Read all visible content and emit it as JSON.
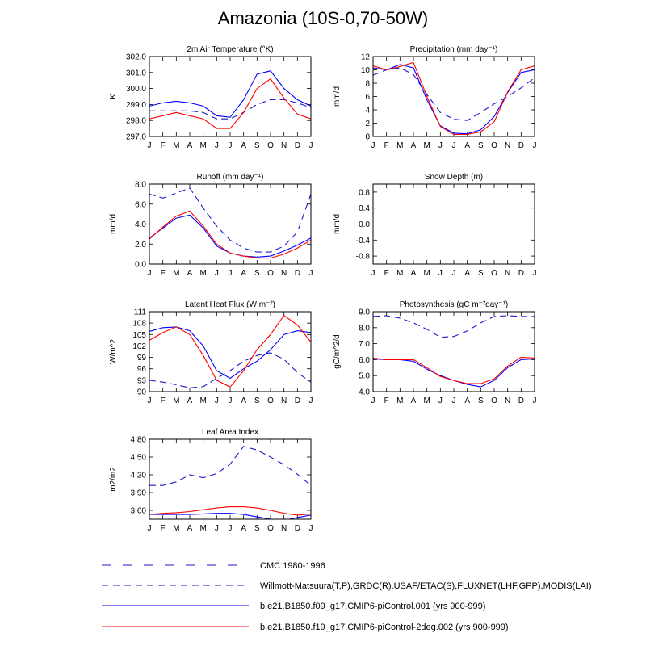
{
  "page": {
    "title": "Amazonia (10S-0,70-50W)"
  },
  "months": [
    "J",
    "F",
    "M",
    "A",
    "M",
    "J",
    "J",
    "A",
    "S",
    "O",
    "N",
    "D",
    "J"
  ],
  "colors": {
    "obs": "#1a1ac8",
    "blue": "#0000ff",
    "red": "#ff0000",
    "axis": "#000000"
  },
  "legend": [
    {
      "label": "CMC 1980-1996",
      "color": "#1a1ac8",
      "dash": "long"
    },
    {
      "label": "Willmott-Matsuura(T,P),GRDC(R),USAF/ETAC(S),FLUXNET(LHF,GPP),MODIS(LAI)",
      "color": "#1a1ac8",
      "dash": "medium"
    },
    {
      "label": "b.e21.B1850.f09_g17.CMIP6-piControl.001 (yrs 900-999)",
      "color": "#0000ff",
      "dash": "solid"
    },
    {
      "label": "b.e21.B1850.f19_g17.CMIP6-piControl-2deg.002 (yrs 900-999)",
      "color": "#ff0000",
      "dash": "solid"
    }
  ],
  "chart_data": [
    {
      "type": "line",
      "id": "temp",
      "title": "2m Air Temperature (°K)",
      "ylabel": "K",
      "ylim": [
        297.0,
        302.0
      ],
      "yticks": [
        "297.0",
        "298.0",
        "299.0",
        "300.0",
        "301.0",
        "302.0"
      ],
      "yticks_values": [
        297.0,
        298.0,
        299.0,
        300.0,
        301.0,
        302.0
      ],
      "series": [
        {
          "name": "Willmott-Matsuura",
          "style": "dashed",
          "values": [
            298.6,
            298.6,
            298.6,
            298.6,
            298.5,
            298.1,
            298.1,
            298.5,
            299.0,
            299.3,
            299.3,
            299.1,
            298.8
          ]
        },
        {
          "name": "piControl.001",
          "style": "blue",
          "values": [
            298.9,
            299.1,
            299.2,
            299.1,
            298.9,
            298.3,
            298.2,
            299.3,
            300.9,
            301.1,
            300.0,
            299.3,
            298.9
          ]
        },
        {
          "name": "piControl-2deg.002",
          "style": "red",
          "values": [
            298.1,
            298.3,
            298.5,
            298.3,
            298.1,
            297.5,
            297.5,
            298.5,
            300.0,
            300.6,
            299.4,
            298.4,
            298.1
          ]
        }
      ]
    },
    {
      "type": "line",
      "id": "precip",
      "title": "Precipitation (mm day⁻¹)",
      "ylabel": "mm/d",
      "ylim": [
        0,
        12
      ],
      "yticks": [
        "0",
        "2",
        "4",
        "6",
        "8",
        "10",
        "12"
      ],
      "yticks_values": [
        0,
        2,
        4,
        6,
        8,
        10,
        12
      ],
      "series": [
        {
          "name": "Willmott-Matsuura",
          "style": "dashed",
          "values": [
            9.2,
            10.0,
            10.3,
            9.3,
            6.3,
            3.6,
            2.6,
            2.4,
            3.6,
            4.9,
            6.0,
            7.3,
            8.8
          ]
        },
        {
          "name": "piControl.001",
          "style": "blue",
          "values": [
            10.3,
            10.0,
            10.8,
            10.3,
            5.5,
            1.6,
            0.5,
            0.4,
            1.0,
            3.0,
            6.6,
            9.6,
            10.0
          ]
        },
        {
          "name": "piControl-2deg.002",
          "style": "red",
          "values": [
            10.6,
            10.0,
            10.5,
            11.1,
            6.0,
            1.5,
            0.3,
            0.3,
            0.7,
            2.2,
            6.7,
            10.0,
            10.6
          ]
        }
      ]
    },
    {
      "type": "line",
      "id": "runoff",
      "title": "Runoff (mm day⁻¹)",
      "ylabel": "mm/d",
      "ylim": [
        0.0,
        8.0
      ],
      "yticks": [
        "0.0",
        "2.0",
        "4.0",
        "6.0",
        "8.0"
      ],
      "yticks_values": [
        0.0,
        2.0,
        4.0,
        6.0,
        8.0
      ],
      "series": [
        {
          "name": "GRDC",
          "style": "dashed",
          "values": [
            7.0,
            6.6,
            7.1,
            7.6,
            5.6,
            3.8,
            2.4,
            1.6,
            1.2,
            1.2,
            1.8,
            3.2,
            7.0
          ]
        },
        {
          "name": "piControl.001",
          "style": "blue",
          "values": [
            2.6,
            3.6,
            4.6,
            4.9,
            3.6,
            1.8,
            1.1,
            0.8,
            0.7,
            0.8,
            1.3,
            1.9,
            2.6
          ]
        },
        {
          "name": "piControl-2deg.002",
          "style": "red",
          "values": [
            2.5,
            3.7,
            4.8,
            5.3,
            3.8,
            2.0,
            1.1,
            0.8,
            0.6,
            0.6,
            1.0,
            1.6,
            2.4
          ]
        }
      ]
    },
    {
      "type": "line",
      "id": "snow",
      "title": "Snow Depth (m)",
      "ylabel": "mm/d",
      "ylim": [
        -1.0,
        1.0
      ],
      "yticks": [
        "-0.8",
        "-0.4",
        "0.0",
        "0.4",
        "0.8"
      ],
      "yticks_values": [
        -0.8,
        -0.4,
        0.0,
        0.4,
        0.8
      ],
      "series": [
        {
          "name": "USAF/ETAC",
          "style": "dashed",
          "values": [
            0,
            0,
            0,
            0,
            0,
            0,
            0,
            0,
            0,
            0,
            0,
            0,
            0
          ]
        },
        {
          "name": "piControl-2deg.002",
          "style": "red",
          "values": [
            0,
            0,
            0,
            0,
            0,
            0,
            0,
            0,
            0,
            0,
            0,
            0,
            0
          ]
        },
        {
          "name": "piControl.001",
          "style": "blue",
          "values": [
            0,
            0,
            0,
            0,
            0,
            0,
            0,
            0,
            0,
            0,
            0,
            0,
            0
          ]
        }
      ]
    },
    {
      "type": "line",
      "id": "lhf",
      "title": "Latent Heat Flux (W m⁻²)",
      "ylabel": "W/m^2",
      "ylim": [
        90,
        111
      ],
      "yticks": [
        "90",
        "93",
        "96",
        "99",
        "102",
        "105",
        "108",
        "111"
      ],
      "yticks_values": [
        90,
        93,
        96,
        99,
        102,
        105,
        108,
        111
      ],
      "series": [
        {
          "name": "FLUXNET",
          "style": "dashed",
          "values": [
            93.0,
            92.5,
            91.8,
            91.0,
            91.3,
            93.5,
            95.5,
            98.0,
            99.5,
            100.2,
            98.5,
            95.0,
            92.5
          ]
        },
        {
          "name": "piControl.001",
          "style": "blue",
          "values": [
            105.8,
            106.8,
            107.0,
            106.0,
            102.0,
            95.5,
            93.5,
            96.0,
            98.0,
            101.0,
            105.0,
            106.0,
            105.5
          ]
        },
        {
          "name": "piControl-2deg.002",
          "style": "red",
          "values": [
            103.5,
            105.5,
            107.0,
            105.0,
            99.5,
            93.0,
            91.2,
            95.5,
            101.0,
            105.0,
            110.0,
            107.5,
            103.0
          ]
        }
      ]
    },
    {
      "type": "line",
      "id": "gpp",
      "title": "Photosynthesis (gC m⁻²day⁻¹)",
      "ylabel": "gC/m^2/d",
      "ylim": [
        4.0,
        9.0
      ],
      "yticks": [
        "4.0",
        "5.0",
        "6.0",
        "7.0",
        "8.0",
        "9.0"
      ],
      "yticks_values": [
        4.0,
        5.0,
        6.0,
        7.0,
        8.0,
        9.0
      ],
      "series": [
        {
          "name": "FLUXNET",
          "style": "dashed",
          "values": [
            8.7,
            8.75,
            8.6,
            8.3,
            7.9,
            7.4,
            7.45,
            7.8,
            8.3,
            8.7,
            8.75,
            8.7,
            8.7
          ]
        },
        {
          "name": "piControl.001",
          "style": "blue",
          "values": [
            6.05,
            6.0,
            6.0,
            5.9,
            5.4,
            5.0,
            4.7,
            4.45,
            4.3,
            4.7,
            5.5,
            6.0,
            6.05
          ]
        },
        {
          "name": "piControl-2deg.002",
          "style": "red",
          "values": [
            6.1,
            6.0,
            6.0,
            6.0,
            5.5,
            4.95,
            4.7,
            4.5,
            4.5,
            4.8,
            5.6,
            6.15,
            6.1
          ]
        }
      ]
    },
    {
      "type": "line",
      "id": "lai",
      "title": "Leaf Area Index",
      "ylabel": "m2/m2",
      "ylim": [
        3.45,
        4.8
      ],
      "yticks": [
        "3.60",
        "3.90",
        "4.20",
        "4.50",
        "4.80"
      ],
      "yticks_values": [
        3.6,
        3.9,
        4.2,
        4.5,
        4.8
      ],
      "series": [
        {
          "name": "MODIS",
          "style": "dashed",
          "values": [
            4.02,
            4.02,
            4.08,
            4.2,
            4.15,
            4.22,
            4.38,
            4.68,
            4.62,
            4.5,
            4.37,
            4.21,
            4.02
          ]
        },
        {
          "name": "piControl.001",
          "style": "blue",
          "values": [
            3.53,
            3.53,
            3.53,
            3.53,
            3.54,
            3.55,
            3.55,
            3.53,
            3.49,
            3.45,
            3.43,
            3.48,
            3.52
          ]
        },
        {
          "name": "piControl-2deg.002",
          "style": "red",
          "values": [
            3.53,
            3.55,
            3.56,
            3.58,
            3.61,
            3.64,
            3.66,
            3.66,
            3.64,
            3.6,
            3.55,
            3.52,
            3.54
          ]
        }
      ]
    }
  ]
}
